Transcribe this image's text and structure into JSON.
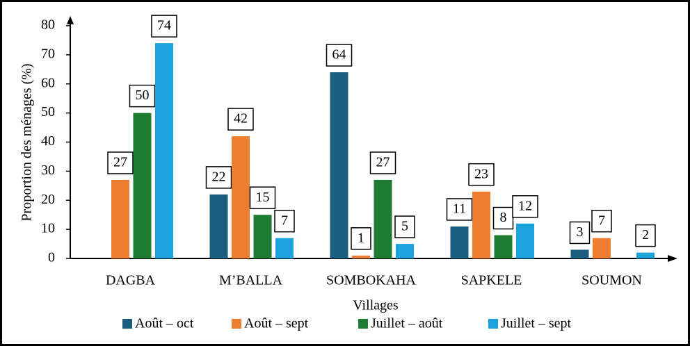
{
  "chart_data": {
    "type": "bar",
    "x_label": "Villages",
    "y_label": "Proportion des ménages (%)",
    "categories": [
      "DAGBA",
      "M’BALLA",
      "SOMBOKAHA",
      "SAPKELE",
      "SOUMON"
    ],
    "series": [
      {
        "name": "Août – oct",
        "color": "#1b5e7d",
        "values": [
          null,
          22,
          64,
          11,
          3
        ]
      },
      {
        "name": "Août – sept",
        "color": "#ed7d31",
        "values": [
          27,
          42,
          1,
          23,
          7
        ]
      },
      {
        "name": "Juillet – août",
        "color": "#1f7a32",
        "values": [
          50,
          15,
          27,
          8,
          null
        ]
      },
      {
        "name": "Juillet – sept",
        "color": "#1ca3dd",
        "values": [
          74,
          7,
          5,
          12,
          2
        ]
      }
    ],
    "ylim": [
      0,
      80
    ],
    "yticks": [
      0,
      10,
      20,
      30,
      40,
      50,
      60,
      70,
      80
    ]
  }
}
